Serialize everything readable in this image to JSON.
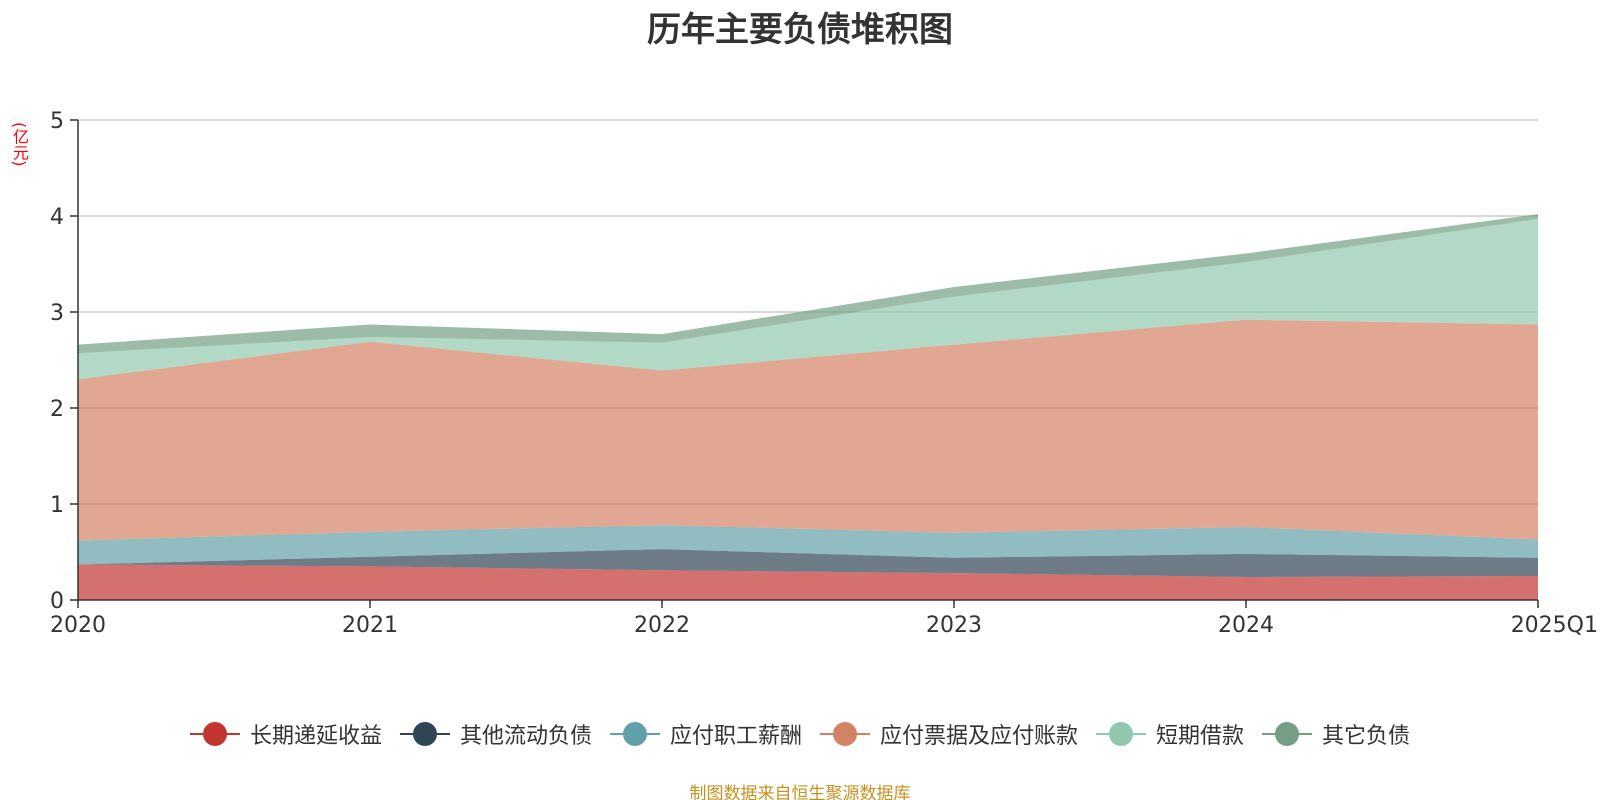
{
  "chart_data": {
    "type": "area",
    "stacked": true,
    "title": "历年主要负债堆积图",
    "ylabel": "(亿元)",
    "xlabel": "",
    "categories": [
      "2020",
      "2021",
      "2022",
      "2023",
      "2024",
      "2025Q1"
    ],
    "ylim": [
      0,
      5
    ],
    "yticks": [
      "0",
      "1",
      "2",
      "3",
      "4",
      "5"
    ],
    "grid": true,
    "legend_position": "bottom",
    "series": [
      {
        "name": "长期递延收益",
        "color": "#c23531",
        "values": [
          0.37,
          0.35,
          0.31,
          0.28,
          0.24,
          0.25
        ]
      },
      {
        "name": "其他流动负债",
        "color": "#2f4554",
        "values": [
          0.0,
          0.1,
          0.22,
          0.16,
          0.24,
          0.19
        ]
      },
      {
        "name": "应付职工薪酬",
        "color": "#61a0a8",
        "values": [
          0.25,
          0.26,
          0.25,
          0.26,
          0.28,
          0.19
        ]
      },
      {
        "name": "应付票据及应付账款",
        "color": "#d48265",
        "values": [
          1.68,
          1.98,
          1.61,
          1.96,
          2.16,
          2.24
        ]
      },
      {
        "name": "短期借款",
        "color": "#91c7ae",
        "values": [
          0.27,
          0.05,
          0.29,
          0.5,
          0.6,
          1.1
        ]
      },
      {
        "name": "其它负债",
        "color": "#749f83",
        "values": [
          0.09,
          0.13,
          0.09,
          0.1,
          0.09,
          0.05
        ]
      }
    ]
  },
  "source_text": "制图数据来自恒生聚源数据库"
}
